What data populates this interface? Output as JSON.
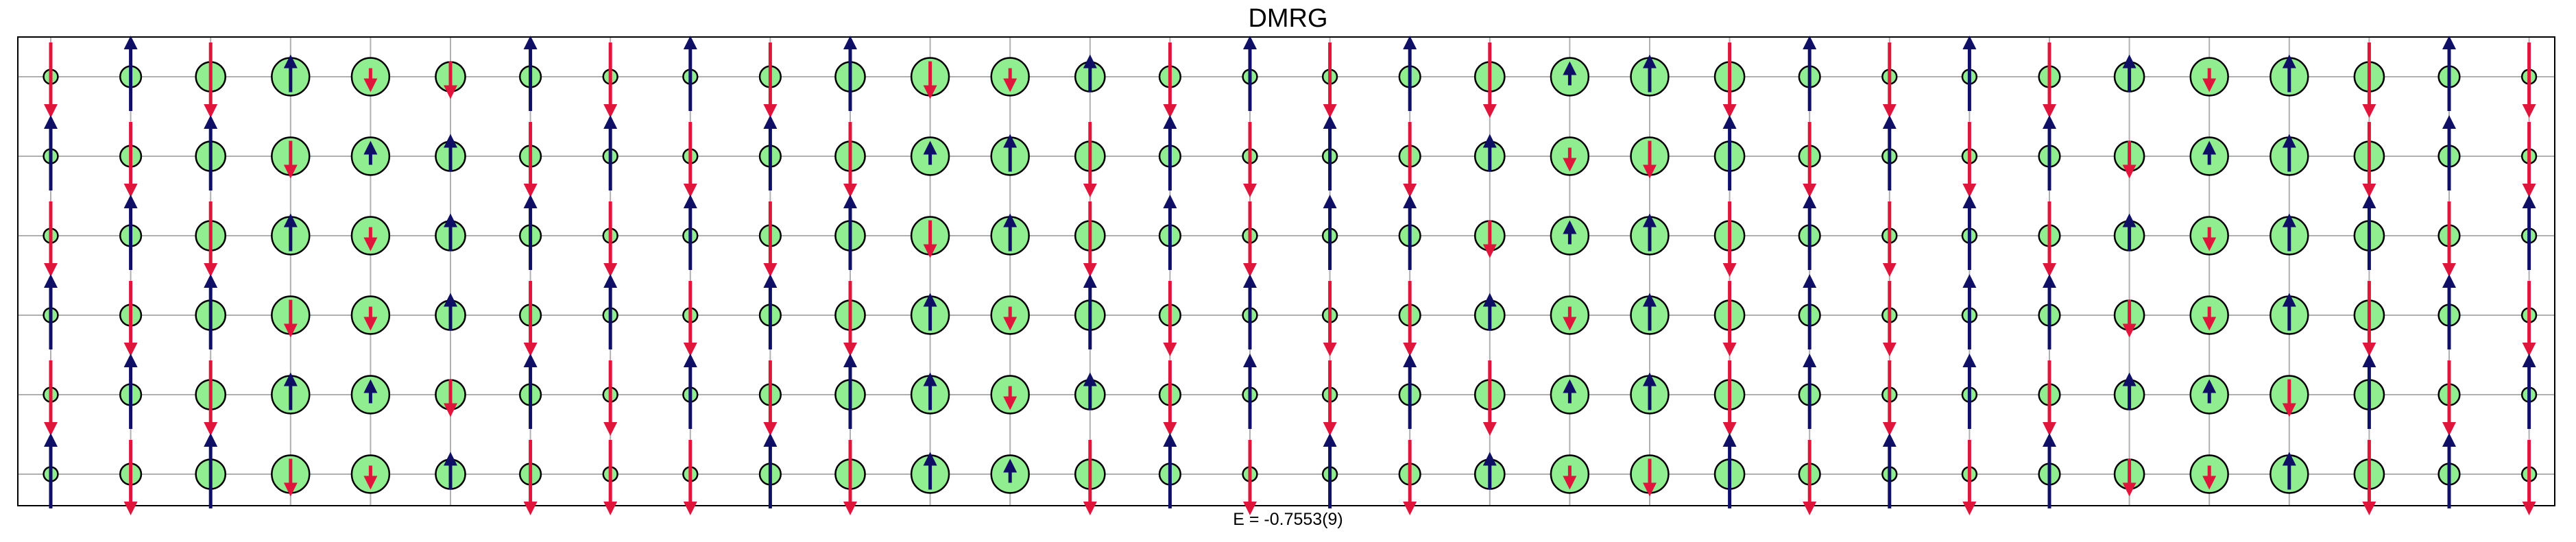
{
  "chart_data": {
    "type": "scatter",
    "title": "DMRG",
    "xlabel": "E = -0.7553(9)",
    "ylabel": "",
    "grid": true,
    "legend": "none",
    "n_columns": 32,
    "n_rows": 6,
    "encoding": {
      "circle_size": "hole density",
      "arrow_direction": "spin sign",
      "arrow_length": "spin magnitude"
    },
    "colors": {
      "circle_fill": "#90EE90",
      "circle_edge": "#000000",
      "spin_up": "#0F0F66",
      "spin_down": "#E0153C",
      "grid": "#B0B0B0",
      "frame": "#000000"
    },
    "rows": [
      {
        "density": [
          0.04,
          0.18,
          0.5,
          0.95,
          0.95,
          0.5,
          0.18,
          0.04,
          0.04,
          0.18,
          0.5,
          0.95,
          0.95,
          0.5,
          0.18,
          0.04,
          0.04,
          0.18,
          0.5,
          0.95,
          0.95,
          0.5,
          0.18,
          0.04,
          0.04,
          0.18,
          0.5,
          0.95,
          0.95,
          0.5,
          0.18,
          0.04
        ],
        "spin": [
          -1,
          1,
          -1,
          0.45,
          -0.25,
          -0.45,
          1,
          -1,
          1,
          -1,
          1,
          -0.45,
          -0.25,
          0.45,
          -1,
          1,
          -1,
          1,
          -1,
          0.25,
          0.45,
          -1,
          1,
          -1,
          1,
          -1,
          0.45,
          -0.25,
          0.45,
          -1,
          1,
          -1
        ]
      },
      {
        "density": [
          0.04,
          0.18,
          0.5,
          0.95,
          0.95,
          0.5,
          0.18,
          0.04,
          0.04,
          0.18,
          0.5,
          0.95,
          0.95,
          0.5,
          0.18,
          0.04,
          0.04,
          0.18,
          0.5,
          0.95,
          0.95,
          0.5,
          0.18,
          0.04,
          0.04,
          0.18,
          0.5,
          0.95,
          0.95,
          0.5,
          0.18,
          0.04
        ],
        "spin": [
          1,
          -1,
          1,
          -0.45,
          0.25,
          0.45,
          -1,
          1,
          -1,
          1,
          -1,
          0.25,
          0.45,
          -1,
          1,
          -1,
          1,
          -1,
          0.45,
          -0.25,
          -0.45,
          1,
          -1,
          1,
          -1,
          1,
          -0.45,
          0.25,
          0.45,
          -1,
          1,
          -1
        ]
      },
      {
        "density": [
          0.04,
          0.18,
          0.5,
          0.95,
          0.95,
          0.5,
          0.18,
          0.04,
          0.04,
          0.18,
          0.5,
          0.95,
          0.95,
          0.5,
          0.18,
          0.04,
          0.04,
          0.18,
          0.5,
          0.95,
          0.95,
          0.5,
          0.18,
          0.04,
          0.04,
          0.18,
          0.5,
          0.95,
          0.95,
          0.5,
          0.18,
          0.04
        ],
        "spin": [
          -1,
          1,
          -1,
          0.45,
          -0.25,
          0.45,
          1,
          -1,
          1,
          -1,
          1,
          -0.45,
          0.45,
          -1,
          1,
          -1,
          1,
          1,
          -0.45,
          0.25,
          0.45,
          -1,
          1,
          -1,
          1,
          -1,
          0.45,
          -0.25,
          0.45,
          1,
          -1,
          1
        ]
      },
      {
        "density": [
          0.04,
          0.18,
          0.5,
          0.95,
          0.95,
          0.5,
          0.18,
          0.04,
          0.04,
          0.18,
          0.5,
          0.95,
          0.95,
          0.5,
          0.18,
          0.04,
          0.04,
          0.18,
          0.5,
          0.95,
          0.95,
          0.5,
          0.18,
          0.04,
          0.04,
          0.18,
          0.5,
          0.95,
          0.95,
          0.5,
          0.18,
          0.04
        ],
        "spin": [
          1,
          -1,
          1,
          -0.45,
          -0.25,
          0.45,
          -1,
          1,
          -1,
          1,
          -1,
          0.45,
          -0.25,
          1,
          -1,
          1,
          -1,
          -1,
          0.45,
          -0.25,
          0.45,
          -1,
          1,
          -1,
          1,
          1,
          -0.45,
          -0.25,
          0.45,
          -1,
          1,
          -1
        ]
      },
      {
        "density": [
          0.04,
          0.18,
          0.5,
          0.95,
          0.95,
          0.5,
          0.18,
          0.04,
          0.04,
          0.18,
          0.5,
          0.95,
          0.95,
          0.5,
          0.18,
          0.04,
          0.04,
          0.18,
          0.5,
          0.95,
          0.95,
          0.5,
          0.18,
          0.04,
          0.04,
          0.18,
          0.5,
          0.95,
          0.95,
          0.5,
          0.18,
          0.04
        ],
        "spin": [
          -1,
          1,
          -1,
          0.45,
          0.25,
          -0.45,
          1,
          -1,
          1,
          -1,
          1,
          0.45,
          -0.25,
          0.45,
          -1,
          1,
          -1,
          1,
          -1,
          0.25,
          0.45,
          -1,
          1,
          -1,
          1,
          -1,
          0.45,
          0.25,
          -0.45,
          1,
          -1,
          1
        ]
      },
      {
        "density": [
          0.04,
          0.18,
          0.5,
          0.95,
          0.95,
          0.5,
          0.18,
          0.04,
          0.04,
          0.18,
          0.5,
          0.95,
          0.95,
          0.5,
          0.18,
          0.04,
          0.04,
          0.18,
          0.5,
          0.95,
          0.95,
          0.5,
          0.18,
          0.04,
          0.04,
          0.18,
          0.5,
          0.95,
          0.95,
          0.5,
          0.18,
          0.04
        ],
        "spin": [
          1,
          -1,
          1,
          -0.45,
          -0.25,
          0.45,
          -1,
          -1,
          -1,
          1,
          -1,
          0.45,
          0.25,
          -1,
          1,
          -1,
          1,
          -1,
          0.45,
          -0.25,
          -0.45,
          1,
          -1,
          1,
          -1,
          1,
          -0.45,
          -0.25,
          0.45,
          -1,
          1,
          -1
        ]
      }
    ]
  }
}
